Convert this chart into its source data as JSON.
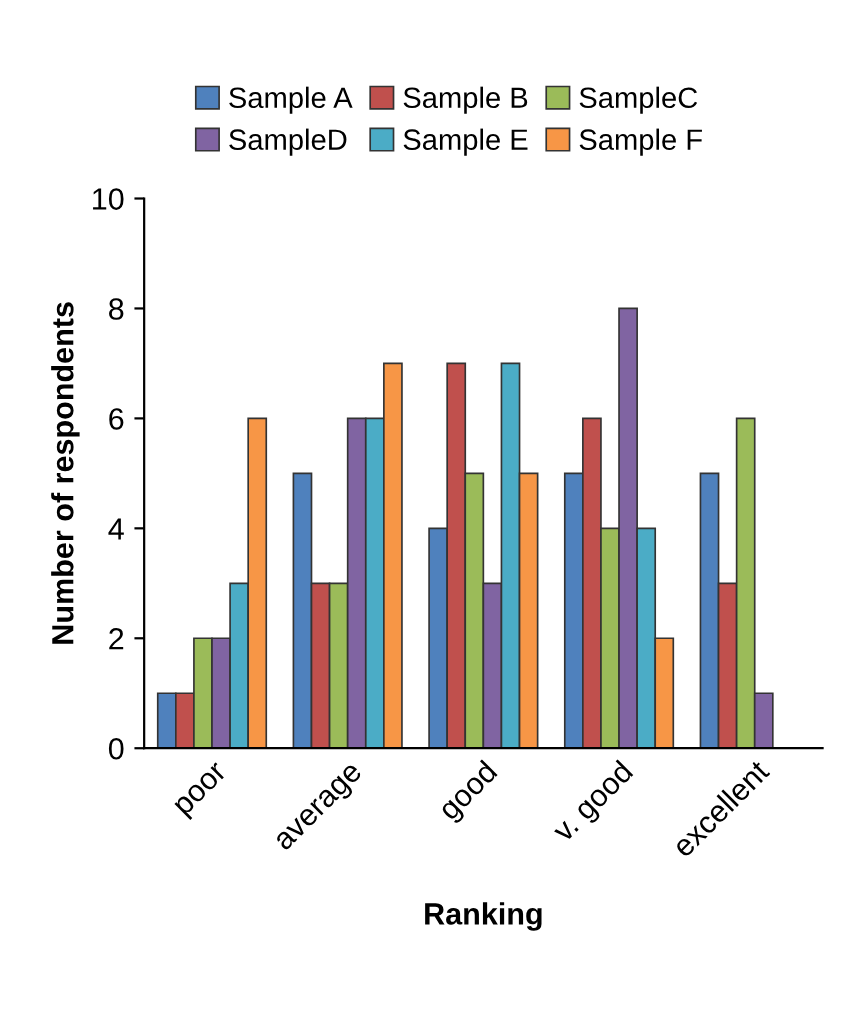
{
  "chart_data": {
    "type": "bar",
    "xlabel": "Ranking",
    "ylabel": "Number of respondents",
    "categories": [
      "poor",
      "average",
      "good",
      "v. good",
      "excellent"
    ],
    "series": [
      {
        "name": "Sample A",
        "color": "#4f81bd",
        "values": [
          1,
          5,
          4,
          5,
          5
        ]
      },
      {
        "name": "Sample B",
        "color": "#c0504d",
        "values": [
          1,
          3,
          7,
          6,
          3
        ]
      },
      {
        "name": "SampleC",
        "color": "#9bbb59",
        "values": [
          2,
          3,
          5,
          4,
          6
        ]
      },
      {
        "name": "SampleD",
        "color": "#8064a2",
        "values": [
          2,
          6,
          3,
          8,
          1
        ]
      },
      {
        "name": "Sample E",
        "color": "#4bacc6",
        "values": [
          3,
          6,
          7,
          4,
          0
        ]
      },
      {
        "name": "Sample F",
        "color": "#f79646",
        "values": [
          6,
          7,
          5,
          2,
          0
        ]
      }
    ],
    "ylim": [
      0,
      10
    ],
    "yticks": [
      0,
      2,
      4,
      6,
      8,
      10
    ],
    "grid": false,
    "legend": "top"
  }
}
